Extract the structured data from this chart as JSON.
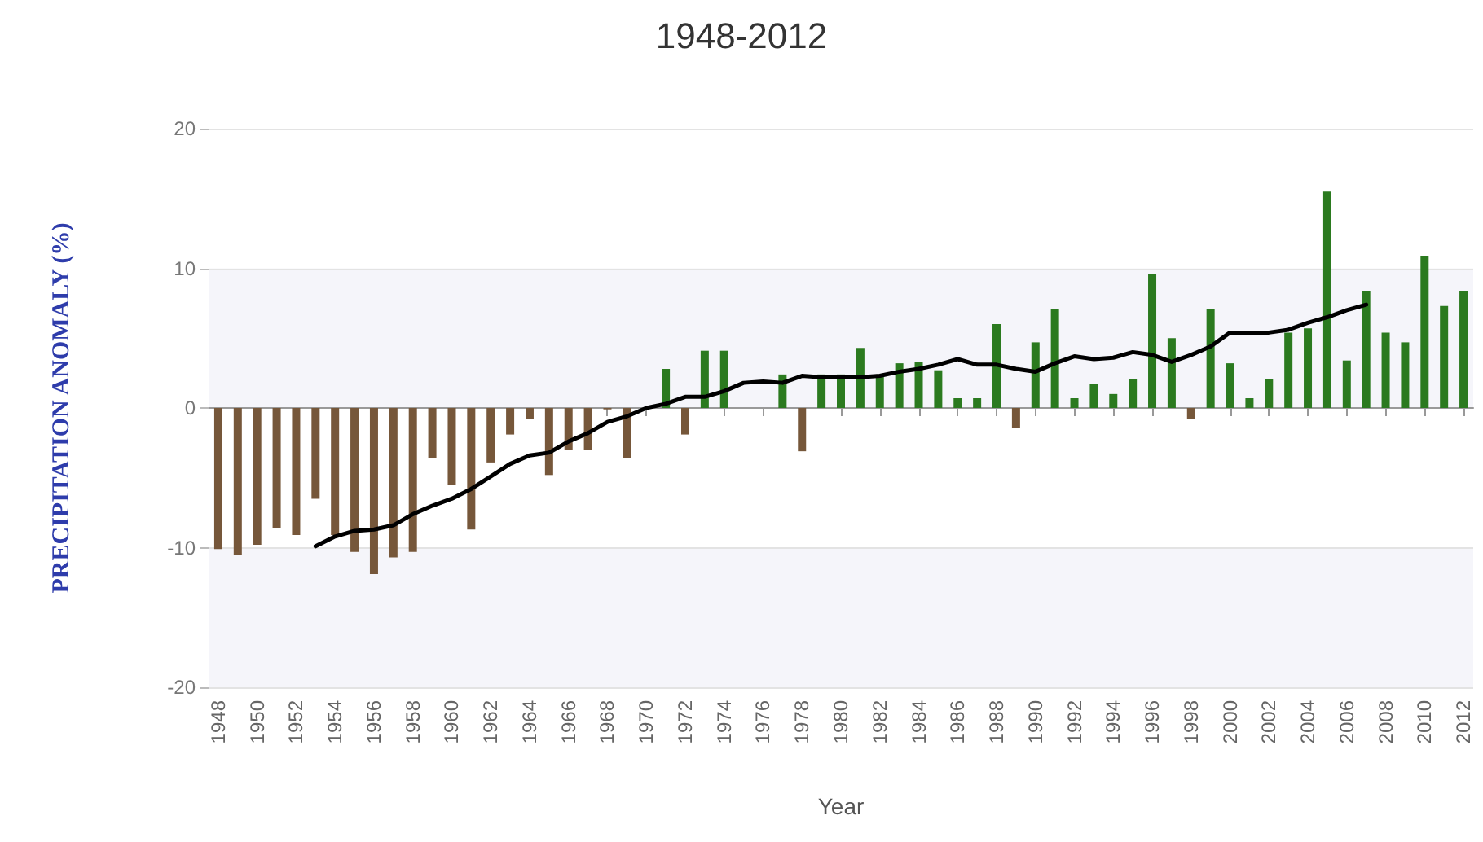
{
  "chart_data": {
    "type": "bar",
    "title": "1948-2012",
    "xlabel": "Year",
    "ylabel": "PRECIPITATION ANOMALY (%)",
    "categories": [
      "1948",
      null,
      "1950",
      null,
      "1952",
      null,
      "1954",
      null,
      "1956",
      null,
      "1958",
      null,
      "1960",
      null,
      "1962",
      null,
      "1964",
      null,
      "1966",
      null,
      "1968",
      null,
      "1970",
      null,
      "1972",
      null,
      "1974",
      null,
      "1976",
      null,
      "1978",
      null,
      "1980",
      null,
      "1982",
      null,
      "1984",
      null,
      "1986",
      null,
      "1988",
      null,
      "1990",
      null,
      "1992",
      null,
      "1994",
      null,
      "1996",
      null,
      "1998",
      null,
      "2000",
      null,
      "2002",
      null,
      "2004",
      null,
      "2006",
      null,
      "2008",
      null,
      "2010",
      null,
      "2012"
    ],
    "series": [
      {
        "values": [
          -10.1,
          -10.5,
          -9.8,
          -8.6,
          -9.1,
          -6.5,
          -9.1,
          -10.3,
          -11.9,
          -10.7,
          -10.3,
          -3.6,
          -5.5,
          -8.7,
          -3.9,
          -1.9,
          -0.8,
          -4.8,
          -3.0,
          -3.0,
          -0.1,
          -3.6,
          0,
          2.8,
          -1.9,
          4.1,
          4.1,
          0,
          0,
          2.4,
          -3.1,
          2.4,
          2.4,
          4.3,
          2.4,
          3.2,
          3.3,
          2.7,
          0.7,
          0.7,
          6.0,
          -1.4,
          4.7,
          7.1,
          0.7,
          1.7,
          1.0,
          2.1,
          9.6,
          5.0,
          -0.8,
          7.1,
          3.2,
          0.7,
          2.1,
          5.4,
          5.7,
          15.5,
          3.4,
          8.4,
          5.4,
          4.7,
          10.9,
          7.3,
          8.4
        ],
        "colors": [
          "#76573a",
          "#76573a",
          "#76573a",
          "#76573a",
          "#76573a",
          "#76573a",
          "#76573a",
          "#76573a",
          "#76573a",
          "#76573a",
          "#76573a",
          "#76573a",
          "#76573a",
          "#76573a",
          "#76573a",
          "#76573a",
          "#76573a",
          "#76573a",
          "#76573a",
          "#76573a",
          "#76573a",
          "#76573a",
          "#76573a",
          "#2b7a1f",
          "#76573a",
          "#2b7a1f",
          "#2b7a1f",
          "#2b7a1f",
          "#2b7a1f",
          "#2b7a1f",
          "#76573a",
          "#2b7a1f",
          "#2b7a1f",
          "#2b7a1f",
          "#2b7a1f",
          "#2b7a1f",
          "#2b7a1f",
          "#2b7a1f",
          "#2b7a1f",
          "#2b7a1f",
          "#2b7a1f",
          "#76573a",
          "#2b7a1f",
          "#2b7a1f",
          "#2b7a1f",
          "#2b7a1f",
          "#2b7a1f",
          "#2b7a1f",
          "#2b7a1f",
          "#2b7a1f",
          "#76573a",
          "#2b7a1f",
          "#2b7a1f",
          "#2b7a1f",
          "#2b7a1f",
          "#2b7a1f",
          "#2b7a1f",
          "#2b7a1f",
          "#2b7a1f",
          "#2b7a1f",
          "#2b7a1f",
          "#2b7a1f",
          "#2b7a1f",
          "#2b7a1f",
          "#2b7a1f"
        ]
      },
      {
        "type": "line",
        "color": "#000000",
        "marker": "none",
        "line_style": "solid",
        "values": [
          null,
          null,
          null,
          null,
          null,
          -9.9,
          -9.2,
          -8.8,
          -8.7,
          -8.4,
          -7.6,
          -7.0,
          -6.5,
          -5.8,
          -4.9,
          -4.0,
          -3.4,
          -3.2,
          -2.4,
          -1.8,
          -1.0,
          -0.6,
          0.0,
          0.3,
          0.8,
          0.8,
          1.2,
          1.8,
          1.9,
          1.8,
          2.3,
          2.2,
          2.2,
          2.2,
          2.3,
          2.6,
          2.8,
          3.1,
          3.5,
          3.1,
          3.1,
          2.8,
          2.6,
          3.2,
          3.7,
          3.5,
          3.6,
          4.0,
          3.8,
          3.3,
          3.8,
          4.4,
          5.4,
          5.4,
          5.4,
          5.6,
          6.1,
          6.5,
          7.0,
          7.4,
          null,
          null,
          null,
          null,
          null
        ]
      }
    ],
    "ylim": [
      -20,
      20
    ],
    "yticks": [
      -20,
      -10,
      0,
      10,
      20
    ],
    "grid": "y",
    "bands": [
      {
        "axis": "y",
        "from": 0,
        "to": 10,
        "color": "#f5f5fa"
      },
      {
        "axis": "y",
        "from": -20,
        "to": -10,
        "color": "#f5f5fa"
      }
    ]
  }
}
